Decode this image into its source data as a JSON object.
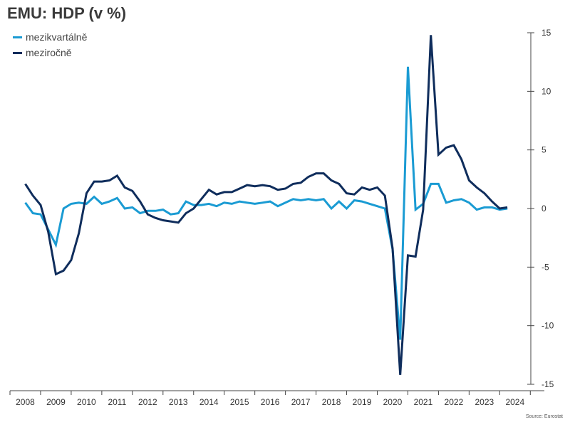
{
  "header": {
    "title": "EMU: HDP (v %)"
  },
  "footer": {
    "source": "Source: Eurostat"
  },
  "chart_data": {
    "type": "line",
    "title": "EMU: HDP (v %)",
    "xlabel": "",
    "ylabel": "",
    "ylim": [
      -15,
      15
    ],
    "yticks": [
      15,
      10,
      5,
      0,
      -5,
      -10,
      -15
    ],
    "xlim": [
      2007.5,
      2024.4
    ],
    "xtick_labels": [
      "2008",
      "2009",
      "2010",
      "2011",
      "2012",
      "2013",
      "2014",
      "2015",
      "2016",
      "2017",
      "2018",
      "2019",
      "2020",
      "2021",
      "2022",
      "2023",
      "2024"
    ],
    "grid": false,
    "legend_position": "top-left",
    "y_axis_position": "right",
    "series": [
      {
        "name": "mezikvartálně",
        "color": "#1a9bd3",
        "x": [
          2008.0,
          2008.25,
          2008.5,
          2008.75,
          2009.0,
          2009.25,
          2009.5,
          2009.75,
          2010.0,
          2010.25,
          2010.5,
          2010.75,
          2011.0,
          2011.25,
          2011.5,
          2011.75,
          2012.0,
          2012.25,
          2012.5,
          2012.75,
          2013.0,
          2013.25,
          2013.5,
          2013.75,
          2014.0,
          2014.25,
          2014.5,
          2014.75,
          2015.0,
          2015.25,
          2015.5,
          2015.75,
          2016.0,
          2016.25,
          2016.5,
          2016.75,
          2017.0,
          2017.25,
          2017.5,
          2017.75,
          2018.0,
          2018.25,
          2018.5,
          2018.75,
          2019.0,
          2019.25,
          2019.5,
          2019.75,
          2020.0,
          2020.25,
          2020.5,
          2020.75,
          2021.0,
          2021.25,
          2021.5,
          2021.75,
          2022.0,
          2022.25,
          2022.5,
          2022.75,
          2023.0,
          2023.25,
          2023.5,
          2023.75
        ],
        "values": [
          0.5,
          -0.4,
          -0.5,
          -1.8,
          -3.1,
          0.0,
          0.4,
          0.5,
          0.4,
          1.0,
          0.4,
          0.6,
          0.9,
          0.0,
          0.1,
          -0.4,
          -0.2,
          -0.2,
          -0.1,
          -0.5,
          -0.4,
          0.6,
          0.3,
          0.3,
          0.4,
          0.2,
          0.5,
          0.4,
          0.6,
          0.5,
          0.4,
          0.5,
          0.6,
          0.2,
          0.5,
          0.8,
          0.7,
          0.8,
          0.7,
          0.8,
          0.0,
          0.6,
          0.0,
          0.7,
          0.6,
          0.4,
          0.2,
          0.0,
          -3.5,
          -11.2,
          12.1,
          -0.1,
          0.4,
          2.1,
          2.1,
          0.5,
          0.7,
          0.8,
          0.5,
          -0.1,
          0.1,
          0.1,
          -0.1,
          0.0
        ]
      },
      {
        "name": "meziročně",
        "color": "#0f2d5c",
        "x": [
          2008.0,
          2008.25,
          2008.5,
          2008.75,
          2009.0,
          2009.25,
          2009.5,
          2009.75,
          2010.0,
          2010.25,
          2010.5,
          2010.75,
          2011.0,
          2011.25,
          2011.5,
          2011.75,
          2012.0,
          2012.25,
          2012.5,
          2012.75,
          2013.0,
          2013.25,
          2013.5,
          2013.75,
          2014.0,
          2014.25,
          2014.5,
          2014.75,
          2015.0,
          2015.25,
          2015.5,
          2015.75,
          2016.0,
          2016.25,
          2016.5,
          2016.75,
          2017.0,
          2017.25,
          2017.5,
          2017.75,
          2018.0,
          2018.25,
          2018.5,
          2018.75,
          2019.0,
          2019.25,
          2019.5,
          2019.75,
          2020.0,
          2020.25,
          2020.5,
          2020.75,
          2021.0,
          2021.25,
          2021.5,
          2021.75,
          2022.0,
          2022.25,
          2022.5,
          2022.75,
          2023.0,
          2023.25,
          2023.5,
          2023.75
        ],
        "values": [
          2.1,
          1.1,
          0.3,
          -2.0,
          -5.6,
          -5.3,
          -4.4,
          -2.1,
          1.3,
          2.3,
          2.3,
          2.4,
          2.8,
          1.8,
          1.5,
          0.6,
          -0.5,
          -0.8,
          -1.0,
          -1.1,
          -1.2,
          -0.4,
          0.0,
          0.8,
          1.6,
          1.2,
          1.4,
          1.4,
          1.7,
          2.0,
          1.9,
          2.0,
          1.9,
          1.6,
          1.7,
          2.1,
          2.2,
          2.7,
          3.0,
          3.0,
          2.4,
          2.1,
          1.3,
          1.2,
          1.8,
          1.6,
          1.8,
          1.1,
          -3.4,
          -14.2,
          -4.0,
          -4.1,
          -0.1,
          14.8,
          4.6,
          5.2,
          5.4,
          4.2,
          2.4,
          1.8,
          1.3,
          0.6,
          0.0,
          0.1
        ]
      }
    ]
  }
}
